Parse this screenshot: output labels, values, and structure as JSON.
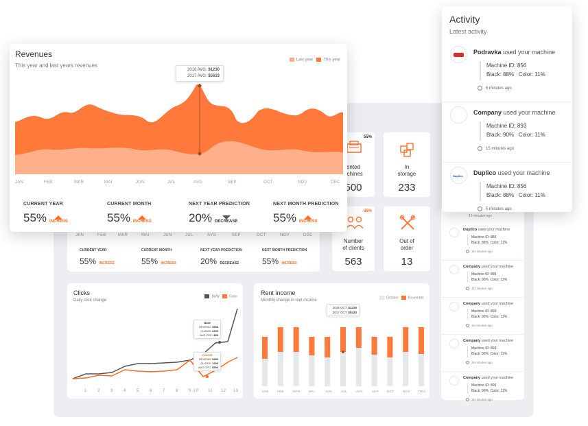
{
  "colors": {
    "accent": "#ff7a3a",
    "accent_light": "#fdb089",
    "dark": "#555555",
    "bar_bg": "#e6e7e9"
  },
  "revenues": {
    "title": "Revenues",
    "subtitle": "This year and last years revenues",
    "legend": [
      "Last year",
      "This year"
    ],
    "tooltip": {
      "l1": "2016 AVG:",
      "v1": "$1230",
      "l2": "2017 AVG:",
      "v2": "$5633"
    },
    "months": [
      "JAN",
      "FEB",
      "MAR",
      "MAI",
      "JUN",
      "JUL",
      "AVG",
      "SEP",
      "OCT",
      "NOV",
      "DEC"
    ],
    "stats": [
      {
        "label": "CURRENT YEAR",
        "value": "55%",
        "dir": "INCRESS",
        "up": true
      },
      {
        "label": "CURRENT MONTH",
        "value": "55%",
        "dir": "INCRESS",
        "up": true
      },
      {
        "label": "NEXT YEAR PREDICTION",
        "value": "20%",
        "dir": "DECREASE",
        "up": false
      },
      {
        "label": "NEXT MONTH PREDICTION",
        "value": "55%",
        "dir": "INCRESS",
        "up": true
      }
    ]
  },
  "back_stats": [
    {
      "label": "CURRENT YEAR",
      "value": "55%",
      "dir": "INCRESS",
      "up": true
    },
    {
      "label": "CURRENT MONTH",
      "value": "55%",
      "dir": "INCRESS",
      "up": true
    },
    {
      "label": "NEXT YEAR PREDICTION",
      "value": "20%",
      "dir": "DECREASE",
      "up": false
    },
    {
      "label": "NEXT MONTH PREDICTION",
      "value": "55%",
      "dir": "INCRESS",
      "up": true
    }
  ],
  "tiles": [
    {
      "l1": "ented",
      "l2": "achines",
      "value": "500",
      "badge": "55%",
      "icon": "printer-icon"
    },
    {
      "l1": "In",
      "l2": "storage",
      "value": "233",
      "badge": "",
      "icon": "boxes-icon"
    },
    {
      "l1": "Number",
      "l2": "of clients",
      "value": "563",
      "badge": "55%",
      "icon": "clients-icon"
    },
    {
      "l1": "Out of",
      "l2": "order",
      "value": "13",
      "badge": "",
      "icon": "tools-icon"
    }
  ],
  "clicks": {
    "title": "Clicks",
    "subtitle": "Daily click change",
    "legend": [
      "B&W",
      "Color"
    ],
    "x": [
      "1",
      "2",
      "3",
      "4",
      "5",
      "6",
      "7",
      "8",
      "9",
      "10",
      "11",
      "12",
      "13"
    ],
    "tip_bw": {
      "head": "B&W",
      "rows": [
        [
          "REVENU:",
          "$698"
        ],
        [
          "CLICKS:",
          "2200"
        ],
        [
          "AVG CPC:",
          "$55"
        ]
      ]
    },
    "tip_color": {
      "head": "COLOR",
      "rows": [
        [
          "REVENU:",
          "$456"
        ],
        [
          "CLICKS:",
          "1200"
        ],
        [
          "AVG CPC:",
          "$590"
        ]
      ]
    }
  },
  "rent": {
    "title": "Rent income",
    "subtitle": "Monthly change in rent income",
    "legend": [
      "October",
      "November"
    ],
    "tooltip": {
      "l1": "2016 OCT:",
      "v1": "$1230",
      "l2": "2017 OCT:",
      "v2": "$5433"
    },
    "months": [
      "JAN",
      "FEB",
      "MAR",
      "MAI",
      "JUN",
      "JUL",
      "AVG",
      "SEP",
      "OCT",
      "NOV",
      "DEC"
    ]
  },
  "activity": {
    "title": "Activity",
    "subtitle": "Latest activity",
    "items": [
      {
        "company": "Podravka",
        "text": " used your machine",
        "machine": "Machine ID: 856",
        "black": "Black: 88%",
        "color": "Color: 11%",
        "time": "6 minutes ago",
        "logo": "podravka"
      },
      {
        "company": "Company",
        "text": " used your machine",
        "machine": "Machine ID: 893",
        "black": "Black: 90%",
        "color": "Color: 11%",
        "time": "15 minutes ago",
        "logo": ""
      },
      {
        "company": "Duplico",
        "text": " used your machine",
        "machine": "Machine ID: 856",
        "black": "Black: 88%",
        "color": "Color: 11%",
        "time": "5 minutes ago",
        "logo": "duplico"
      }
    ]
  },
  "back_activity": {
    "top_time": "15 minutes ago",
    "items": [
      {
        "company": "Duplico",
        "text": " used your machine",
        "machine": "Machine ID: 856",
        "black": "Black: 88%",
        "color": "Color: 11%",
        "time": "15 minutes ago"
      },
      {
        "company": "Company",
        "text": " used your machine",
        "machine": "Machine ID: 893",
        "black": "Black: 90%",
        "color": "Color: 11%",
        "time": "15 minutes ago"
      },
      {
        "company": "Company",
        "text": " used your machine",
        "machine": "Machine ID: 893",
        "black": "Black: 90%",
        "color": "Color: 11%",
        "time": "15 minutes ago"
      },
      {
        "company": "Company",
        "text": " used your machine",
        "machine": "Machine ID: 893",
        "black": "Black: 90%",
        "color": "Color: 11%",
        "time": "15 minutes ago"
      },
      {
        "company": "Company",
        "text": " used your machine",
        "machine": "Machine ID: 893",
        "black": "Black: 90%",
        "color": "Color: 11%",
        "time": "15 minutes ago"
      }
    ]
  }
}
